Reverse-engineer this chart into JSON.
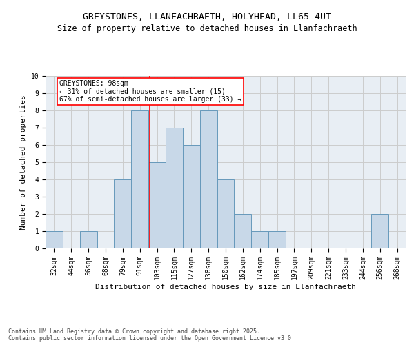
{
  "title1": "GREYSTONES, LLANFACHRAETH, HOLYHEAD, LL65 4UT",
  "title2": "Size of property relative to detached houses in Llanfachraeth",
  "xlabel": "Distribution of detached houses by size in Llanfachraeth",
  "ylabel": "Number of detached properties",
  "footnote": "Contains HM Land Registry data © Crown copyright and database right 2025.\nContains public sector information licensed under the Open Government Licence v3.0.",
  "bin_labels": [
    "32sqm",
    "44sqm",
    "56sqm",
    "68sqm",
    "79sqm",
    "91sqm",
    "103sqm",
    "115sqm",
    "127sqm",
    "138sqm",
    "150sqm",
    "162sqm",
    "174sqm",
    "185sqm",
    "197sqm",
    "209sqm",
    "221sqm",
    "233sqm",
    "244sqm",
    "256sqm",
    "268sqm"
  ],
  "bar_values": [
    1,
    0,
    1,
    0,
    4,
    8,
    5,
    7,
    6,
    8,
    4,
    2,
    1,
    1,
    0,
    0,
    0,
    0,
    0,
    2,
    0
  ],
  "bar_color": "#c8d8e8",
  "bar_edgecolor": "#6699bb",
  "annotation_text": "GREYSTONES: 98sqm\n← 31% of detached houses are smaller (15)\n67% of semi-detached houses are larger (33) →",
  "annotation_box_color": "white",
  "annotation_box_edgecolor": "red",
  "ylim": [
    0,
    10
  ],
  "yticks": [
    0,
    1,
    2,
    3,
    4,
    5,
    6,
    7,
    8,
    9,
    10
  ],
  "grid_color": "#cccccc",
  "background_color": "#e8eef4",
  "title_fontsize": 9.5,
  "subtitle_fontsize": 8.5,
  "axis_label_fontsize": 8,
  "tick_fontsize": 7,
  "footnote_fontsize": 6,
  "annotation_fontsize": 7
}
